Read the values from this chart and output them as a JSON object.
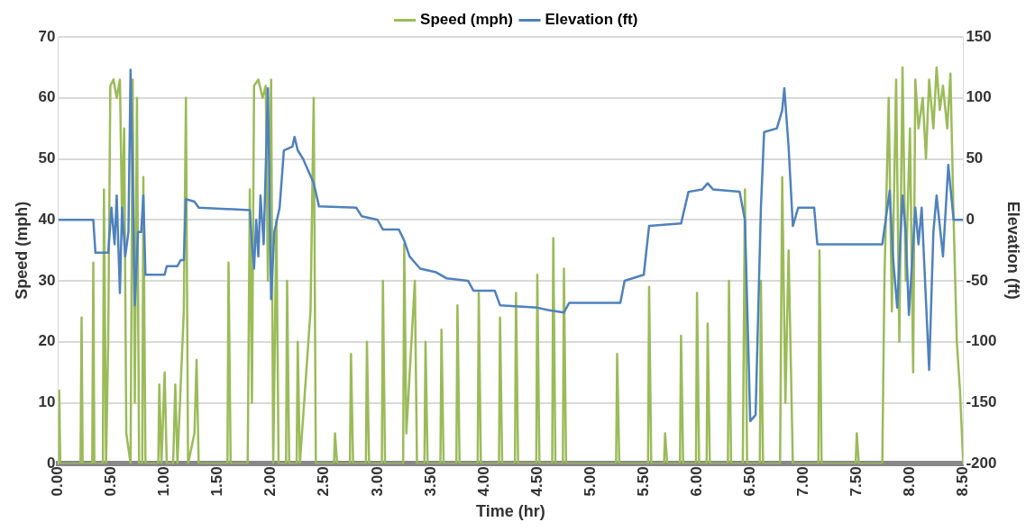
{
  "chart_data": {
    "type": "line",
    "xlabel": "Time (hr)",
    "ylabel": "Speed (mph)",
    "y2label": "Elevation (ft)",
    "xlim": [
      0,
      8.5
    ],
    "xticks": [
      {
        "value": 0,
        "label": "0.00"
      },
      {
        "value": 0.5,
        "label": "0.50"
      },
      {
        "value": 1,
        "label": "1.00"
      },
      {
        "value": 1.5,
        "label": "1.50"
      },
      {
        "value": 2,
        "label": "2.00"
      },
      {
        "value": 2.5,
        "label": "2.50"
      },
      {
        "value": 3,
        "label": "3.00"
      },
      {
        "value": 3.5,
        "label": "3.50"
      },
      {
        "value": 4,
        "label": "4.00"
      },
      {
        "value": 4.5,
        "label": "4.50"
      },
      {
        "value": 5,
        "label": "5.00"
      },
      {
        "value": 5.5,
        "label": "5.50"
      },
      {
        "value": 6,
        "label": "6.00"
      },
      {
        "value": 6.5,
        "label": "6.50"
      },
      {
        "value": 7,
        "label": "7.00"
      },
      {
        "value": 7.5,
        "label": "7.50"
      },
      {
        "value": 8,
        "label": "8.00"
      },
      {
        "value": 8.5,
        "label": "8.50"
      }
    ],
    "ylim": [
      0,
      70
    ],
    "yticks": [
      0,
      10,
      20,
      30,
      40,
      50,
      60,
      70
    ],
    "y2lim": [
      -200,
      150
    ],
    "y2ticks": [
      -200,
      -150,
      -100,
      -50,
      0,
      50,
      100,
      150
    ],
    "grid": "y",
    "legend": "top",
    "marker": "none",
    "series": [
      {
        "name": "Speed (mph)",
        "color": "#9bbb59",
        "x": [
          0,
          0.01,
          0.02,
          0.21,
          0.22,
          0.23,
          0.32,
          0.33,
          0.34,
          0.42,
          0.43,
          0.45,
          0.47,
          0.49,
          0.52,
          0.55,
          0.58,
          0.6,
          0.62,
          0.64,
          0.68,
          0.7,
          0.72,
          0.74,
          0.76,
          0.79,
          0.8,
          0.82,
          0.94,
          0.95,
          0.97,
          1.0,
          1.02,
          1.08,
          1.1,
          1.12,
          1.18,
          1.2,
          1.22,
          1.28,
          1.3,
          1.32,
          1.59,
          1.6,
          1.62,
          1.78,
          1.8,
          1.82,
          1.84,
          1.88,
          1.92,
          1.95,
          1.97,
          2.0,
          2.02,
          2.05,
          2.07,
          2.14,
          2.15,
          2.17,
          2.24,
          2.25,
          2.27,
          2.37,
          2.4,
          2.42,
          2.59,
          2.6,
          2.62,
          2.74,
          2.75,
          2.77,
          2.89,
          2.9,
          2.92,
          3.04,
          3.05,
          3.07,
          3.24,
          3.25,
          3.27,
          3.35,
          3.37,
          3.44,
          3.45,
          3.47,
          3.59,
          3.6,
          3.62,
          3.74,
          3.75,
          3.77,
          3.94,
          3.95,
          3.97,
          4.14,
          4.15,
          4.17,
          4.29,
          4.3,
          4.32,
          4.49,
          4.5,
          4.52,
          4.64,
          4.65,
          4.67,
          4.74,
          4.75,
          4.77,
          5.24,
          5.25,
          5.27,
          5.54,
          5.55,
          5.57,
          5.69,
          5.7,
          5.72,
          5.84,
          5.85,
          5.87,
          5.99,
          6.0,
          6.02,
          6.09,
          6.1,
          6.12,
          6.29,
          6.3,
          6.32,
          6.43,
          6.45,
          6.47,
          6.59,
          6.6,
          6.62,
          6.78,
          6.8,
          6.83,
          6.86,
          6.9,
          7.14,
          7.15,
          7.17,
          7.49,
          7.5,
          7.52,
          7.74,
          7.76,
          7.8,
          7.83,
          7.87,
          7.9,
          7.93,
          7.96,
          8.0,
          8.03,
          8.05,
          8.08,
          8.12,
          8.15,
          8.18,
          8.22,
          8.25,
          8.28,
          8.31,
          8.35,
          8.38,
          8.41,
          8.44,
          8.47,
          8.5
        ],
        "values": [
          0,
          12,
          0,
          0,
          24,
          0,
          0,
          33,
          0,
          0,
          45,
          0,
          20,
          62,
          63,
          60,
          63,
          40,
          55,
          5,
          0,
          63,
          10,
          60,
          0,
          0,
          47,
          0,
          0,
          13,
          0,
          15,
          0,
          0,
          13,
          0,
          25,
          60,
          0,
          5,
          17,
          0,
          0,
          33,
          0,
          0,
          45,
          10,
          62,
          63,
          60,
          62,
          30,
          63,
          0,
          40,
          0,
          0,
          30,
          0,
          0,
          20,
          0,
          25,
          60,
          0,
          0,
          5,
          0,
          0,
          18,
          0,
          0,
          20,
          0,
          0,
          30,
          0,
          0,
          36,
          5,
          30,
          0,
          0,
          20,
          0,
          0,
          22,
          0,
          0,
          26,
          0,
          0,
          28,
          0,
          0,
          24,
          0,
          0,
          28,
          0,
          0,
          31,
          0,
          0,
          37,
          0,
          0,
          32,
          0,
          0,
          18,
          0,
          0,
          29,
          0,
          0,
          5,
          0,
          0,
          21,
          0,
          0,
          28,
          0,
          0,
          23,
          0,
          0,
          30,
          0,
          0,
          45,
          0,
          0,
          30,
          0,
          0,
          47,
          10,
          35,
          0,
          0,
          35,
          0,
          0,
          5,
          0,
          0,
          30,
          60,
          25,
          63,
          20,
          65,
          30,
          55,
          15,
          63,
          55,
          60,
          50,
          63,
          55,
          65,
          58,
          62,
          55,
          64,
          40,
          20,
          12,
          0
        ]
      },
      {
        "name": "Elevation (ft)",
        "color": "#4f81bd",
        "axis": "y2",
        "x": [
          0,
          0.33,
          0.35,
          0.47,
          0.5,
          0.53,
          0.55,
          0.58,
          0.6,
          0.63,
          0.66,
          0.68,
          0.7,
          0.72,
          0.75,
          0.78,
          0.8,
          0.82,
          1.0,
          1.02,
          1.12,
          1.15,
          1.18,
          1.2,
          1.28,
          1.32,
          1.8,
          1.82,
          1.84,
          1.86,
          1.88,
          1.9,
          1.93,
          1.97,
          2.0,
          2.03,
          2.08,
          2.12,
          2.2,
          2.22,
          2.25,
          2.3,
          2.35,
          2.4,
          2.45,
          2.8,
          2.85,
          3.0,
          3.05,
          3.2,
          3.25,
          3.3,
          3.35,
          3.4,
          3.55,
          3.65,
          3.85,
          3.9,
          4.1,
          4.15,
          4.5,
          4.6,
          4.75,
          4.8,
          5.28,
          5.32,
          5.5,
          5.55,
          5.85,
          5.92,
          6.05,
          6.1,
          6.15,
          6.4,
          6.45,
          6.5,
          6.55,
          6.6,
          6.63,
          6.75,
          6.8,
          6.82,
          6.86,
          6.9,
          6.95,
          7.1,
          7.13,
          7.74,
          7.81,
          7.84,
          7.88,
          7.93,
          7.96,
          7.99,
          8.05,
          8.08,
          8.11,
          8.18,
          8.22,
          8.25,
          8.31,
          8.36,
          8.41,
          8.5
        ],
        "values": [
          0,
          0,
          -27,
          -27,
          10,
          -20,
          20,
          -60,
          10,
          -30,
          -10,
          123,
          30,
          -70,
          -10,
          -10,
          20,
          -45,
          -45,
          -38,
          -38,
          -33,
          -33,
          17,
          15,
          10,
          8,
          -20,
          -40,
          0,
          -30,
          20,
          -20,
          108,
          -65,
          -10,
          10,
          57,
          60,
          68,
          57,
          50,
          40,
          30,
          11,
          10,
          3,
          0,
          -8,
          -8,
          -17,
          -30,
          -35,
          -40,
          -43,
          -48,
          -50,
          -58,
          -58,
          -70,
          -72,
          -74,
          -76,
          -68,
          -68,
          -50,
          -45,
          -5,
          -3,
          23,
          25,
          30,
          25,
          23,
          0,
          -165,
          -160,
          10,
          72,
          75,
          90,
          108,
          60,
          -5,
          10,
          10,
          -20,
          -20,
          24,
          -30,
          -72,
          20,
          -10,
          -78,
          10,
          -20,
          10,
          -123,
          -10,
          20,
          -30,
          45,
          0,
          0
        ]
      }
    ]
  }
}
